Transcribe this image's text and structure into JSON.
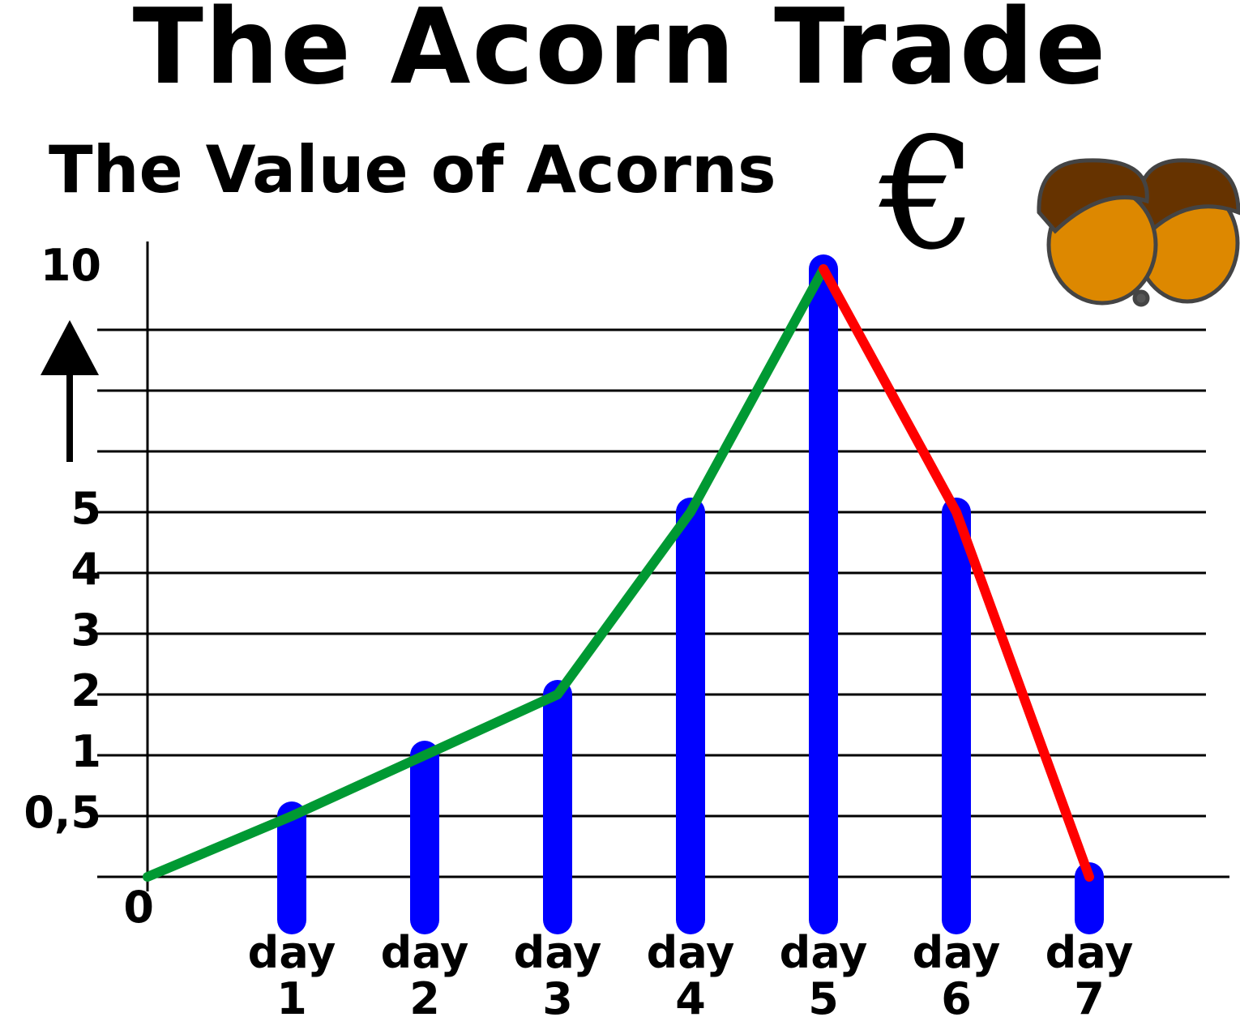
{
  "chart_data": {
    "type": "bar-line",
    "title": "The Acorn Trade",
    "subtitle": "The Value of Acorns",
    "unit": "€",
    "categories": [
      null,
      "day 1",
      "day 2",
      "day 3",
      "day 4",
      "day 5",
      "day 6",
      "day 7"
    ],
    "values": [
      0,
      0.5,
      1,
      2,
      5,
      10,
      5,
      0
    ],
    "bar_color": "#0000ff",
    "rise_color": "#009933",
    "fall_color": "#ff0000",
    "ylim": [
      0,
      10
    ],
    "yticks": [
      0,
      {
        "value": 0.5,
        "label": "0,5"
      },
      1,
      2,
      3,
      4,
      5,
      {
        "value": 6.25,
        "label": null
      },
      {
        "value": 7.5,
        "label": null
      },
      {
        "value": 8.75,
        "label": null
      },
      10
    ],
    "grid": true
  }
}
